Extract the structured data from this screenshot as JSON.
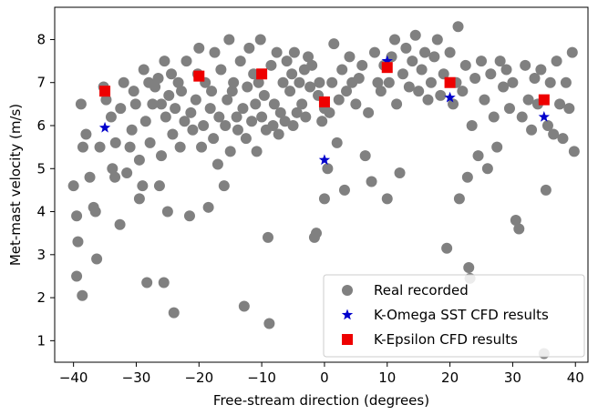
{
  "chart_data": {
    "type": "scatter",
    "xlabel": "Free-stream direction (degrees)",
    "ylabel": "Met-mast velocity (m/s)",
    "xlim": [
      -43,
      42
    ],
    "ylim": [
      0.5,
      8.75
    ],
    "xticks": [
      -40,
      -30,
      -20,
      -10,
      0,
      10,
      20,
      30,
      40
    ],
    "yticks": [
      1,
      2,
      3,
      4,
      5,
      6,
      7,
      8
    ],
    "grid": false,
    "legend_position": "bottom-right",
    "series": [
      {
        "name": "Real recorded",
        "marker": "circle",
        "color": "#808080",
        "points": [
          [
            -40,
            4.6
          ],
          [
            -39.5,
            3.9
          ],
          [
            -39.3,
            3.3
          ],
          [
            -39.5,
            2.5
          ],
          [
            -38.6,
            2.05
          ],
          [
            -38.5,
            5.5
          ],
          [
            -38.8,
            6.5
          ],
          [
            -38,
            5.8
          ],
          [
            -37.4,
            4.8
          ],
          [
            -36.8,
            4.1
          ],
          [
            -36.5,
            4.0
          ],
          [
            -36.3,
            2.9
          ],
          [
            -35.8,
            5.5
          ],
          [
            -35.2,
            6.9
          ],
          [
            -34.8,
            6.6
          ],
          [
            -34,
            6.2
          ],
          [
            -33.8,
            5.0
          ],
          [
            -33.3,
            5.6
          ],
          [
            -33.4,
            4.8
          ],
          [
            -32.6,
            3.7
          ],
          [
            -32.5,
            6.4
          ],
          [
            -32,
            7.0
          ],
          [
            -31.5,
            4.9
          ],
          [
            -31,
            5.5
          ],
          [
            -30.7,
            5.9
          ],
          [
            -30.4,
            6.8
          ],
          [
            -30.1,
            6.5
          ],
          [
            -29.5,
            4.3
          ],
          [
            -29.5,
            5.2
          ],
          [
            -29,
            4.6
          ],
          [
            -28.8,
            7.3
          ],
          [
            -28.5,
            6.1
          ],
          [
            -28.3,
            2.35
          ],
          [
            -28,
            7.0
          ],
          [
            -27.8,
            5.6
          ],
          [
            -27.4,
            6.5
          ],
          [
            -27,
            6.9
          ],
          [
            -26.5,
            7.1
          ],
          [
            -26.3,
            4.6
          ],
          [
            -26,
            5.3
          ],
          [
            -26,
            6.5
          ],
          [
            -25.6,
            2.35
          ],
          [
            -25.5,
            7.5
          ],
          [
            -25.3,
            6.2
          ],
          [
            -25,
            4.0
          ],
          [
            -24.8,
            6.7
          ],
          [
            -24.4,
            7.2
          ],
          [
            -24.2,
            5.8
          ],
          [
            -24,
            1.65
          ],
          [
            -23.8,
            6.4
          ],
          [
            -23.3,
            7.0
          ],
          [
            -23,
            5.5
          ],
          [
            -22.8,
            6.8
          ],
          [
            -22.3,
            6.1
          ],
          [
            -22,
            7.5
          ],
          [
            -21.5,
            3.9
          ],
          [
            -21.3,
            6.3
          ],
          [
            -21,
            5.9
          ],
          [
            -20.5,
            6.6
          ],
          [
            -20.2,
            7.2
          ],
          [
            -20,
            7.8
          ],
          [
            -19.6,
            5.5
          ],
          [
            -19.3,
            6.0
          ],
          [
            -19,
            7.0
          ],
          [
            -18.5,
            4.1
          ],
          [
            -18.2,
            6.4
          ],
          [
            -18,
            6.8
          ],
          [
            -17.7,
            5.7
          ],
          [
            -17.5,
            7.7
          ],
          [
            -17,
            5.1
          ],
          [
            -16.8,
            6.2
          ],
          [
            -16.5,
            7.3
          ],
          [
            -16,
            4.6
          ],
          [
            -15.8,
            6.0
          ],
          [
            -15.5,
            6.6
          ],
          [
            -15.2,
            8.0
          ],
          [
            -15,
            5.4
          ],
          [
            -14.7,
            6.8
          ],
          [
            -14.5,
            7.0
          ],
          [
            -14,
            6.2
          ],
          [
            -13.8,
            5.9
          ],
          [
            -13.4,
            7.5
          ],
          [
            -13,
            6.4
          ],
          [
            -12.8,
            1.8
          ],
          [
            -12.5,
            5.7
          ],
          [
            -12.3,
            6.9
          ],
          [
            -12,
            7.8
          ],
          [
            -11.6,
            6.1
          ],
          [
            -11.3,
            7.2
          ],
          [
            -11,
            6.5
          ],
          [
            -10.8,
            5.4
          ],
          [
            -10.5,
            7.0
          ],
          [
            -10.2,
            8.0
          ],
          [
            -10,
            6.2
          ],
          [
            -9.6,
            6.7
          ],
          [
            -9.3,
            5.9
          ],
          [
            -9,
            3.4
          ],
          [
            -8.8,
            1.4
          ],
          [
            -8.5,
            7.4
          ],
          [
            -8.2,
            6.0
          ],
          [
            -8,
            6.5
          ],
          [
            -7.6,
            7.7
          ],
          [
            -7.3,
            5.8
          ],
          [
            -7,
            6.3
          ],
          [
            -6.6,
            7.0
          ],
          [
            -6.3,
            6.1
          ],
          [
            -6,
            7.5
          ],
          [
            -5.5,
            6.8
          ],
          [
            -5.2,
            7.2
          ],
          [
            -5,
            6.0
          ],
          [
            -4.8,
            7.7
          ],
          [
            -4.4,
            6.3
          ],
          [
            -4,
            7.0
          ],
          [
            -3.6,
            6.5
          ],
          [
            -3.2,
            7.3
          ],
          [
            -3,
            6.2
          ],
          [
            -2.6,
            7.6
          ],
          [
            -2.3,
            6.9
          ],
          [
            -2,
            7.4
          ],
          [
            -1.6,
            3.4
          ],
          [
            -1.3,
            3.5
          ],
          [
            -1,
            6.7
          ],
          [
            -0.8,
            7.0
          ],
          [
            -0.4,
            6.1
          ],
          [
            0,
            6.4
          ],
          [
            0,
            4.3
          ],
          [
            0.5,
            5.0
          ],
          [
            0.8,
            6.3
          ],
          [
            1.2,
            7.0
          ],
          [
            1.5,
            7.9
          ],
          [
            2,
            5.6
          ],
          [
            2.3,
            6.6
          ],
          [
            2.8,
            7.3
          ],
          [
            3.2,
            4.5
          ],
          [
            3.5,
            6.8
          ],
          [
            4,
            7.6
          ],
          [
            4.4,
            7.0
          ],
          [
            5,
            6.5
          ],
          [
            5.5,
            7.1
          ],
          [
            6,
            7.4
          ],
          [
            6.5,
            5.3
          ],
          [
            7,
            6.3
          ],
          [
            7.5,
            4.7
          ],
          [
            8,
            7.7
          ],
          [
            8.5,
            7.0
          ],
          [
            9,
            6.8
          ],
          [
            9.5,
            7.4
          ],
          [
            10,
            4.3
          ],
          [
            10.3,
            7.0
          ],
          [
            10.7,
            7.6
          ],
          [
            11.2,
            8.0
          ],
          [
            11.5,
            6.5
          ],
          [
            12,
            4.9
          ],
          [
            12.5,
            7.2
          ],
          [
            13,
            7.8
          ],
          [
            13.5,
            6.9
          ],
          [
            14,
            7.5
          ],
          [
            14.5,
            8.1
          ],
          [
            15,
            6.8
          ],
          [
            15.5,
            7.3
          ],
          [
            16,
            7.7
          ],
          [
            16.5,
            6.6
          ],
          [
            17,
            7.0
          ],
          [
            17.5,
            7.6
          ],
          [
            18,
            8.0
          ],
          [
            18.5,
            6.7
          ],
          [
            19,
            7.2
          ],
          [
            19.5,
            3.15
          ],
          [
            20,
            7.7
          ],
          [
            20.5,
            6.5
          ],
          [
            21,
            7.0
          ],
          [
            21.3,
            8.3
          ],
          [
            21.5,
            4.3
          ],
          [
            22,
            6.8
          ],
          [
            22.5,
            7.4
          ],
          [
            22.8,
            4.8
          ],
          [
            23,
            2.7
          ],
          [
            23.2,
            2.45
          ],
          [
            23.5,
            6.0
          ],
          [
            24,
            7.1
          ],
          [
            24.5,
            5.3
          ],
          [
            25,
            7.5
          ],
          [
            25.5,
            6.6
          ],
          [
            26,
            5.0
          ],
          [
            26.5,
            7.2
          ],
          [
            27,
            6.2
          ],
          [
            27.5,
            5.5
          ],
          [
            28,
            7.5
          ],
          [
            28.5,
            6.9
          ],
          [
            29,
            7.3
          ],
          [
            29.5,
            6.4
          ],
          [
            30,
            7.0
          ],
          [
            30.5,
            3.8
          ],
          [
            31,
            3.6
          ],
          [
            31.5,
            6.2
          ],
          [
            32,
            7.4
          ],
          [
            32.5,
            6.6
          ],
          [
            33,
            5.9
          ],
          [
            33.5,
            7.1
          ],
          [
            34,
            6.5
          ],
          [
            34.5,
            7.3
          ],
          [
            35,
            0.7
          ],
          [
            35.3,
            4.5
          ],
          [
            35.6,
            6.0
          ],
          [
            36,
            7.0
          ],
          [
            36.5,
            5.8
          ],
          [
            37,
            7.5
          ],
          [
            37.5,
            6.5
          ],
          [
            38,
            5.7
          ],
          [
            38.5,
            7.0
          ],
          [
            39,
            6.4
          ],
          [
            39.5,
            7.7
          ],
          [
            39.8,
            5.4
          ]
        ]
      },
      {
        "name": "K-Omega SST CFD results",
        "marker": "star",
        "color": "#0000cc",
        "points": [
          [
            -35,
            5.95
          ],
          [
            0,
            5.2
          ],
          [
            10,
            7.5
          ],
          [
            20,
            6.65
          ],
          [
            35,
            6.2
          ]
        ]
      },
      {
        "name": "K-Epsilon CFD results",
        "marker": "square",
        "color": "#ee0000",
        "points": [
          [
            -35,
            6.8
          ],
          [
            -20,
            7.15
          ],
          [
            -10,
            7.2
          ],
          [
            0,
            6.55
          ],
          [
            10,
            7.35
          ],
          [
            20,
            7.0
          ],
          [
            35,
            6.6
          ]
        ]
      }
    ]
  }
}
